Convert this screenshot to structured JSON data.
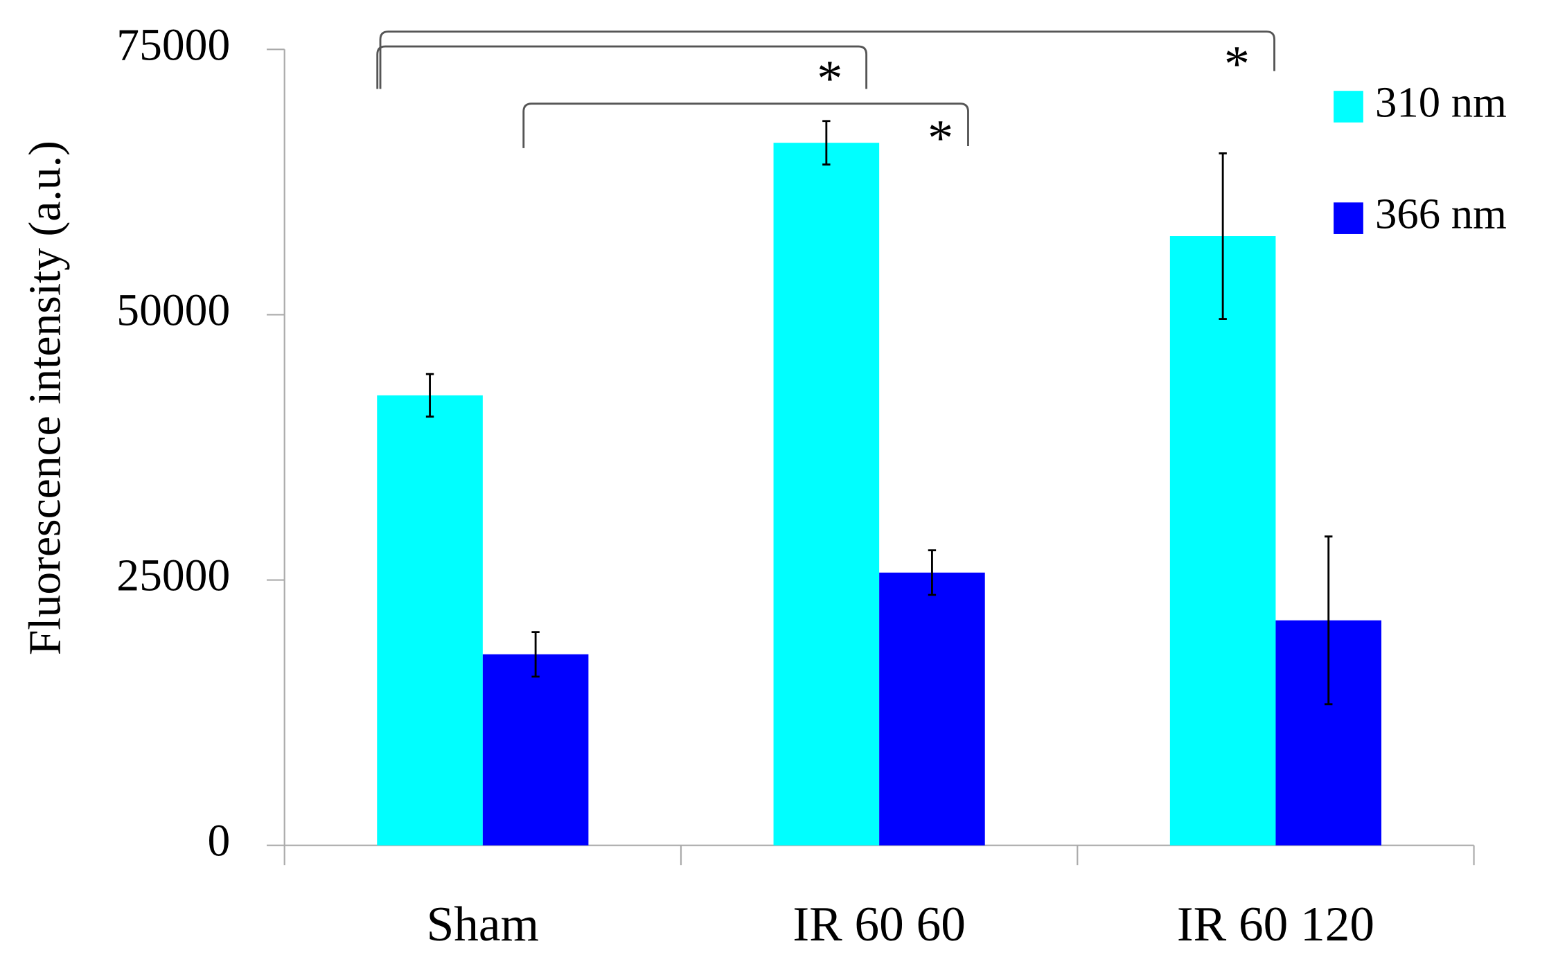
{
  "chart_data": {
    "type": "bar",
    "y_label": "Fluorescence intensity (a.u.)",
    "categories": [
      "Sham",
      "IR 60 60",
      "IR 60 120"
    ],
    "series": [
      {
        "name": "310 nm",
        "color": "#00ffff",
        "values": [
          42400,
          66200,
          57400
        ],
        "errors": [
          2000,
          2050,
          7800
        ]
      },
      {
        "name": "366 nm",
        "color": "#0000ff",
        "values": [
          18000,
          25700,
          21200
        ],
        "errors": [
          2100,
          2100,
          7900
        ]
      }
    ],
    "ylim": [
      0,
      75000
    ],
    "yticks": [
      0,
      25000,
      50000,
      75000
    ],
    "legend": "upper right",
    "annotations": [
      "*",
      "*",
      "*"
    ]
  }
}
